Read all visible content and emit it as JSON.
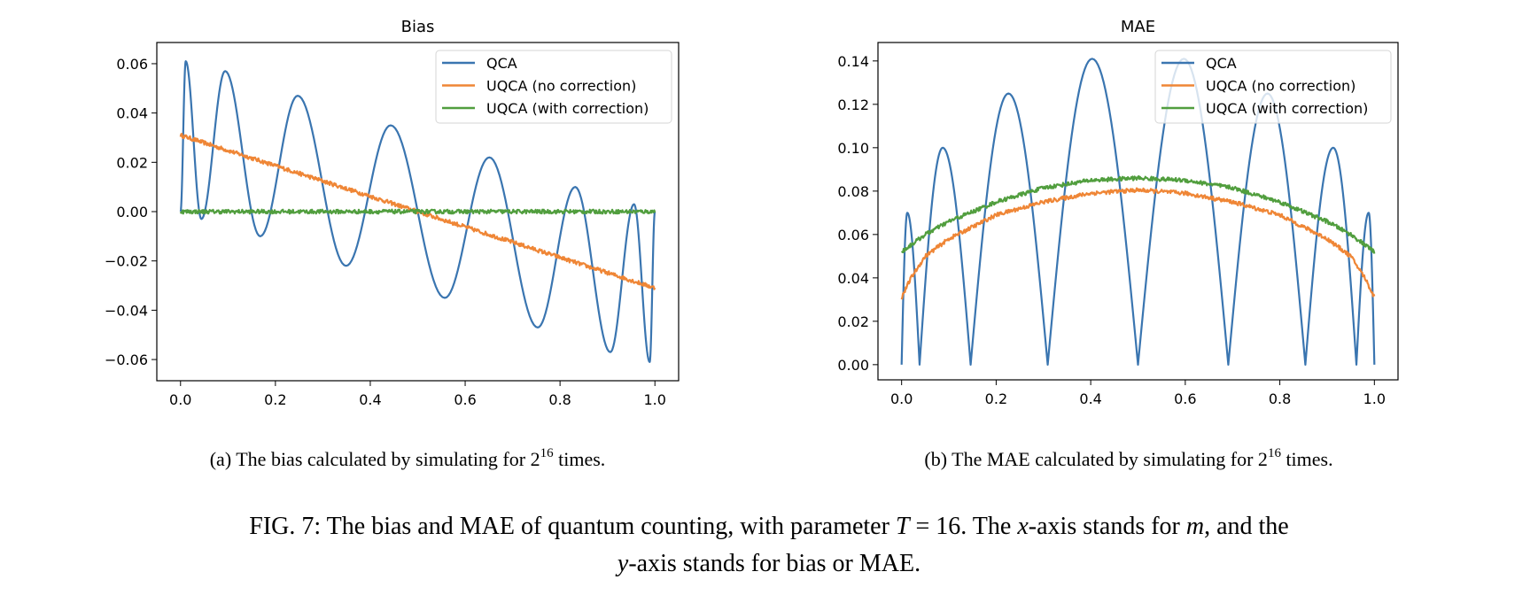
{
  "colors": {
    "QCA": "#3a75b0",
    "UQCA (no correction)": "#ef8636",
    "UQCA (with correction)": "#519e3e"
  },
  "chart_data": [
    {
      "type": "line",
      "title": "Bias",
      "xlabel": "",
      "ylabel": "",
      "xlim": [
        -0.05,
        1.05
      ],
      "ylim": [
        -0.0686,
        0.0686
      ],
      "xticks": [
        0.0,
        0.2,
        0.4,
        0.6,
        0.8,
        1.0
      ],
      "xtick_labels": [
        "0.0",
        "0.2",
        "0.4",
        "0.6",
        "0.8",
        "1.0"
      ],
      "yticks": [
        0.06,
        0.04,
        0.02,
        0.0,
        -0.02,
        -0.04,
        -0.06
      ],
      "ytick_labels": [
        "0.06",
        "0.04",
        "0.02",
        "0.00",
        "−0.02",
        "−0.04",
        "−0.06"
      ],
      "grid": false,
      "legend": "top-right",
      "series": [
        {
          "name": "QCA",
          "points": [
            [
              0,
              0
            ],
            [
              0.011,
              0.061
            ],
            [
              0.044,
              -0.003
            ],
            [
              0.094,
              0.057
            ],
            [
              0.168,
              -0.01
            ],
            [
              0.247,
              0.047
            ],
            [
              0.349,
              -0.022
            ],
            [
              0.443,
              0.035
            ],
            [
              0.557,
              -0.035
            ],
            [
              0.651,
              0.022
            ],
            [
              0.753,
              -0.047
            ],
            [
              0.832,
              0.01
            ],
            [
              0.906,
              -0.057
            ],
            [
              0.956,
              0.003
            ],
            [
              0.989,
              -0.061
            ],
            [
              1,
              0
            ]
          ]
        },
        {
          "name": "UQCA (no correction)",
          "points": [
            [
              0,
              0.031
            ],
            [
              0.5,
              0.0
            ],
            [
              1,
              -0.031
            ]
          ]
        },
        {
          "name": "UQCA (with correction)",
          "points": [
            [
              0,
              0.0
            ],
            [
              1,
              0.0
            ]
          ]
        }
      ]
    },
    {
      "type": "line",
      "title": "MAE",
      "xlabel": "",
      "ylabel": "",
      "xlim": [
        -0.05,
        1.05
      ],
      "ylim": [
        -0.007,
        0.1485
      ],
      "xticks": [
        0.0,
        0.2,
        0.4,
        0.6,
        0.8,
        1.0
      ],
      "xtick_labels": [
        "0.0",
        "0.2",
        "0.4",
        "0.6",
        "0.8",
        "1.0"
      ],
      "yticks": [
        0.14,
        0.12,
        0.1,
        0.08,
        0.06,
        0.04,
        0.02,
        0.0
      ],
      "ytick_labels": [
        "0.14",
        "0.12",
        "0.10",
        "0.08",
        "0.06",
        "0.04",
        "0.02",
        "0.00"
      ],
      "grid": false,
      "legend": "top-right",
      "series": [
        {
          "name": "QCA",
          "points": [
            [
              0,
              0
            ],
            [
              0.012,
              0.07
            ],
            [
              0.038,
              0
            ],
            [
              0.087,
              0.1
            ],
            [
              0.146,
              0
            ],
            [
              0.226,
              0.125
            ],
            [
              0.309,
              0
            ],
            [
              0.403,
              0.141
            ],
            [
              0.5,
              0
            ],
            [
              0.597,
              0.141
            ],
            [
              0.691,
              0
            ],
            [
              0.774,
              0.125
            ],
            [
              0.854,
              0
            ],
            [
              0.913,
              0.1
            ],
            [
              0.962,
              0
            ],
            [
              0.988,
              0.07
            ],
            [
              1,
              0
            ]
          ]
        },
        {
          "name": "UQCA (no correction)",
          "points": [
            [
              0,
              0.031
            ],
            [
              0.02,
              0.04
            ],
            [
              0.05,
              0.05
            ],
            [
              0.1,
              0.058
            ],
            [
              0.2,
              0.069
            ],
            [
              0.3,
              0.075
            ],
            [
              0.4,
              0.079
            ],
            [
              0.5,
              0.0805
            ],
            [
              0.6,
              0.079
            ],
            [
              0.7,
              0.075
            ],
            [
              0.8,
              0.069
            ],
            [
              0.9,
              0.058
            ],
            [
              0.95,
              0.05
            ],
            [
              0.98,
              0.04
            ],
            [
              1,
              0.031
            ]
          ]
        },
        {
          "name": "UQCA (with correction)",
          "points": [
            [
              0,
              0.052
            ],
            [
              0.05,
              0.06
            ],
            [
              0.1,
              0.066
            ],
            [
              0.2,
              0.075
            ],
            [
              0.3,
              0.0815
            ],
            [
              0.4,
              0.085
            ],
            [
              0.5,
              0.086
            ],
            [
              0.6,
              0.085
            ],
            [
              0.7,
              0.0815
            ],
            [
              0.8,
              0.075
            ],
            [
              0.9,
              0.066
            ],
            [
              0.95,
              0.06
            ],
            [
              1,
              0.052
            ]
          ]
        }
      ]
    }
  ],
  "captions": {
    "a": {
      "before": "(a) The bias calculated by simulating for 2",
      "sup": "16",
      "after": " times."
    },
    "b": {
      "before": "(b) The MAE calculated by simulating for 2",
      "sup": "16",
      "after": " times."
    },
    "figure": {
      "l1_a": "FIG. 7: The bias and MAE of quantum counting, with parameter ",
      "l1_T": "T",
      "l1_b": " = 16. The ",
      "l1_x": "x",
      "l1_c": "-axis stands for ",
      "l1_m": "m",
      "l1_d": ", and the",
      "l2_y": "y",
      "l2_a": "-axis stands for bias or MAE."
    }
  }
}
